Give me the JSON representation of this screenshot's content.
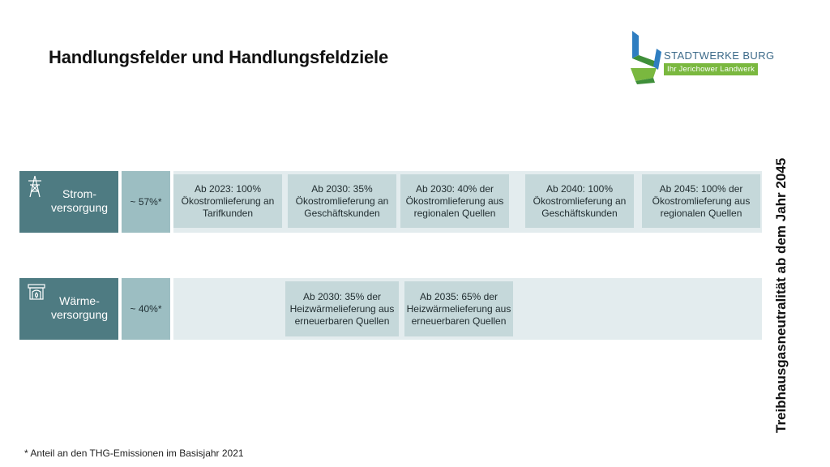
{
  "title": "Handlungsfelder und Handlungsfeldziele",
  "logo": {
    "name": "STADTWERKE BURG",
    "tagline": "Ihr Jerichower Landwerk",
    "colors": {
      "blue": "#2f7ec1",
      "green": "#7ab83f",
      "dark_green": "#3f8f3a"
    }
  },
  "rows": [
    {
      "icon": "power-pylon-icon",
      "label": "Strom-\nversorgung",
      "share": "~ 57%*",
      "goals": [
        "Ab 2023: 100% Ökostromlieferung an Tarifkunden",
        "Ab 2030: 35% Ökostromlieferung an Geschäftskunden",
        "Ab 2030: 40% der Ökostromlieferung aus regionalen Quellen",
        "Ab 2040: 100% Ökostromlieferung an Geschäftskunden",
        "Ab 2045: 100% der Ökostromlieferung aus regionalen Quellen"
      ]
    },
    {
      "icon": "fireplace-icon",
      "label": "Wärme-\nversorgung",
      "share": "~ 40%*",
      "goals": [
        "Ab 2030: 35% der Heizwärmelieferung aus erneuerbaren Quellen",
        "Ab 2035: 65% der Heizwärmelieferung aus erneuerbaren Quellen"
      ]
    }
  ],
  "side_label": "Treibhausgasneutralität ab dem Jahr 2045",
  "footnote": "* Anteil an den THG-Emissionen im Basisjahr 2021",
  "colors": {
    "label_bg": "#4e7b82",
    "share_bg": "#9cbec2",
    "band_bg": "#e3ecee",
    "goal_bg": "#c5d8da"
  }
}
